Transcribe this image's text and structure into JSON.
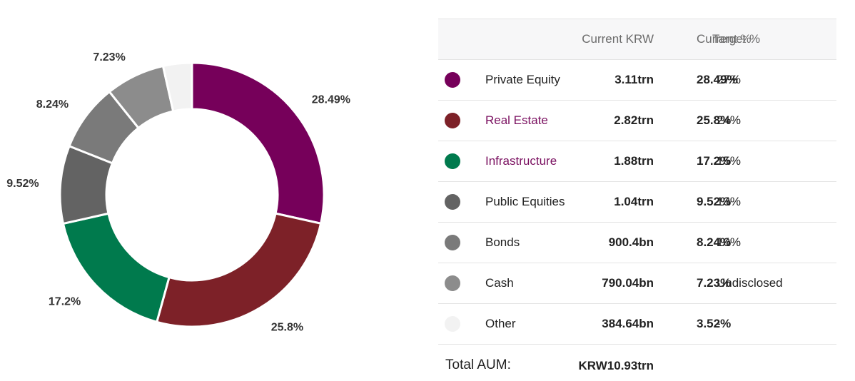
{
  "chart_data": {
    "type": "pie",
    "donut": true,
    "labels": [
      "Private Equity",
      "Real Estate",
      "Infrastructure",
      "Public Equities",
      "Bonds",
      "Cash",
      "Other"
    ],
    "values": [
      28.49,
      25.8,
      17.2,
      9.52,
      8.24,
      7.23,
      3.52
    ],
    "value_labels": [
      "28.49%",
      "25.8%",
      "17.2%",
      "9.52%",
      "8.24%",
      "7.23%",
      ""
    ],
    "colors": [
      "#76005a",
      "#7d2128",
      "#007a4d",
      "#636363",
      "#7a7a7a",
      "#8c8c8c",
      "#f2f2f2"
    ]
  },
  "table": {
    "headers": {
      "current_krw": "Current KRW",
      "current_pct": "Current %",
      "target_pct": "Target %"
    },
    "rows": [
      {
        "name": "Private Equity",
        "krw": "3.11trn",
        "current": "28.49%",
        "target": "27%",
        "color": "#76005a",
        "link": false
      },
      {
        "name": "Real Estate",
        "krw": "2.82trn",
        "current": "25.8%",
        "target": "24%",
        "color": "#7d2128",
        "link": true
      },
      {
        "name": "Infrastructure",
        "krw": "1.88trn",
        "current": "17.2%",
        "target": "15%",
        "color": "#007a4d",
        "link": true
      },
      {
        "name": "Public Equities",
        "krw": "1.04trn",
        "current": "9.52%",
        "target": "13%",
        "color": "#636363",
        "link": false
      },
      {
        "name": "Bonds",
        "krw": "900.4bn",
        "current": "8.24%",
        "target": "10%",
        "color": "#7a7a7a",
        "link": false
      },
      {
        "name": "Cash",
        "krw": "790.04bn",
        "current": "7.23%",
        "target": "Undisclosed",
        "color": "#8c8c8c",
        "link": false
      },
      {
        "name": "Other",
        "krw": "384.64bn",
        "current": "3.52%",
        "target": "-",
        "color": "#f2f2f2",
        "link": false
      }
    ],
    "total_label": "Total AUM:",
    "total_value": "KRW10.93trn"
  }
}
